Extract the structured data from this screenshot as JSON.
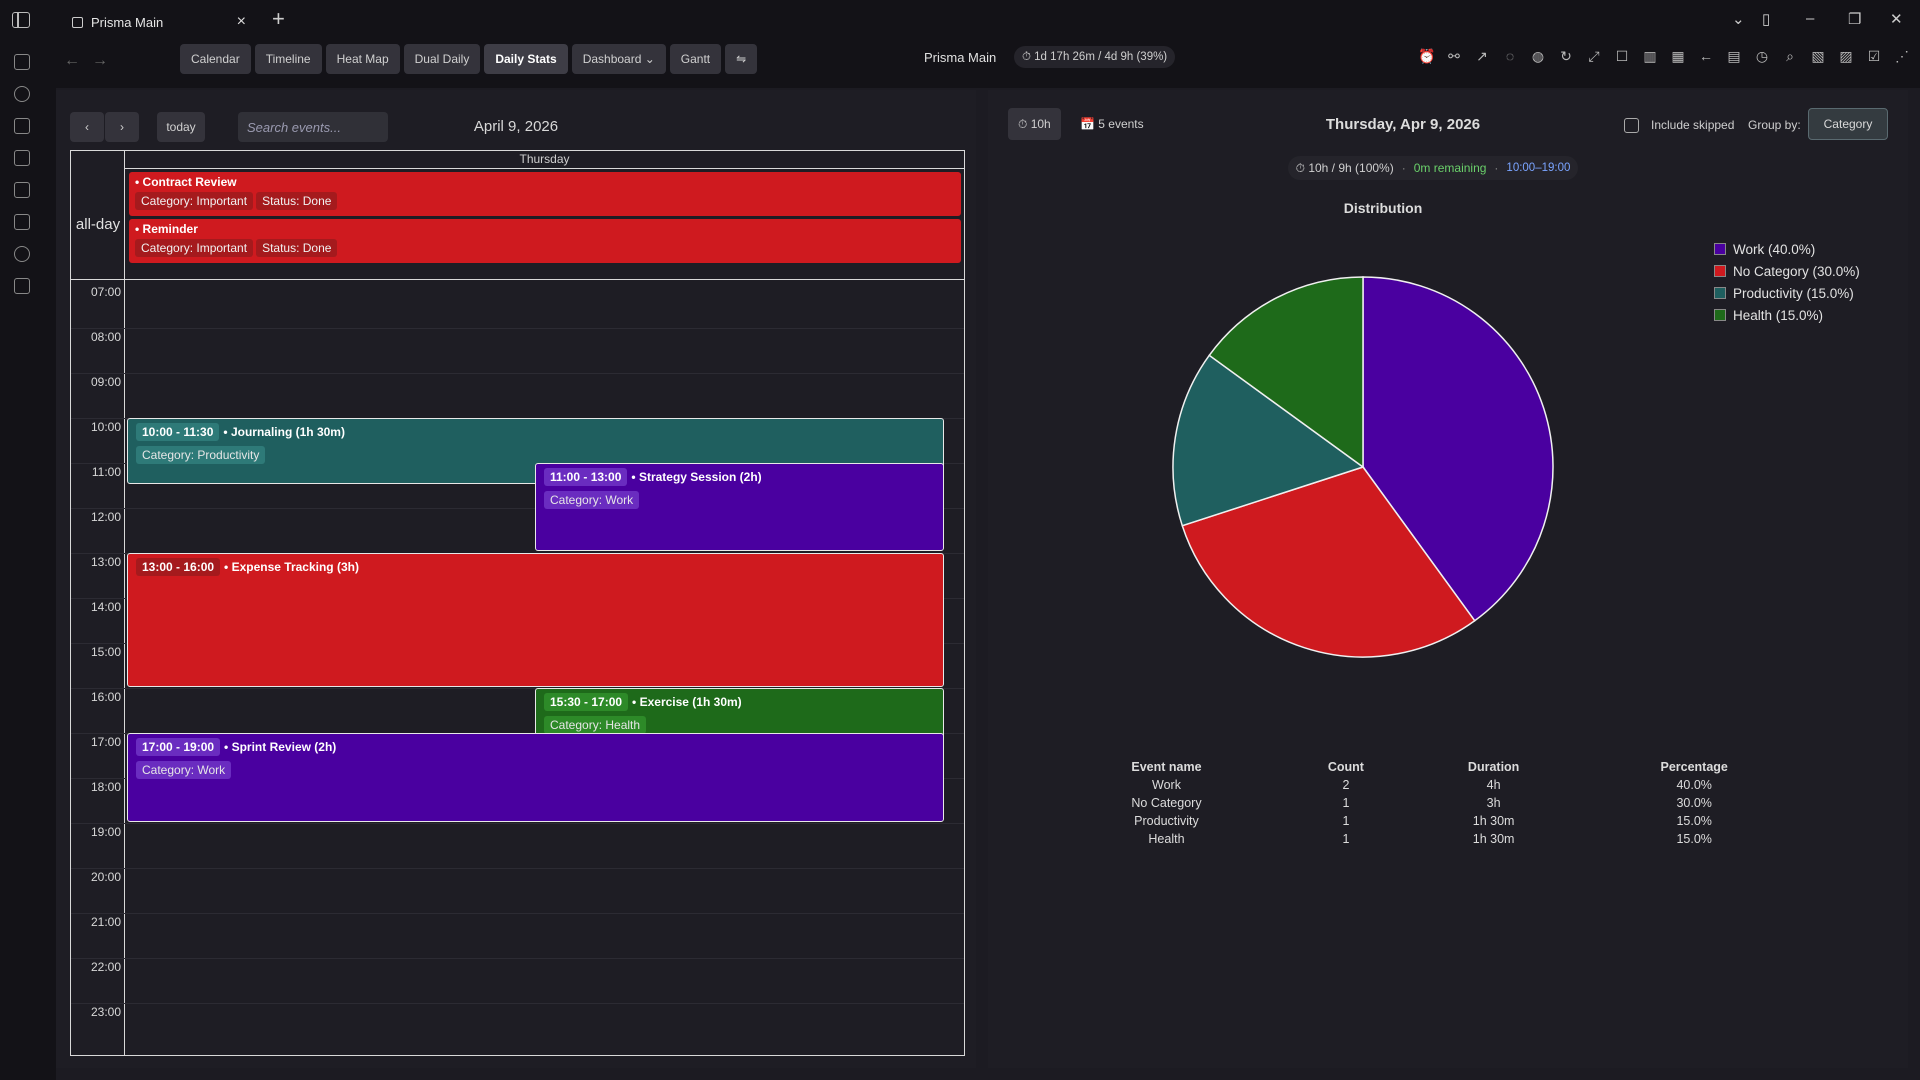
{
  "window": {
    "tab_title": "Prisma Main",
    "tab_close": "×",
    "tab_add": "+"
  },
  "toolbar": {
    "views": [
      "Calendar",
      "Timeline",
      "Heat Map",
      "Dual Daily",
      "Daily Stats",
      "Dashboard ⌄",
      "Gantt",
      "⇋"
    ],
    "active_view": "Daily Stats",
    "vault_name": "Prisma Main",
    "timer": "⏱ 1d 17h 26m / 4d 9h (39%)"
  },
  "calendar": {
    "prev_label": "‹",
    "next_label": "›",
    "today_label": "today",
    "search_placeholder": "Search events...",
    "title": "April 9, 2026",
    "day_header": "Thursday",
    "allday_label": "all-day",
    "hours": [
      "07:00",
      "08:00",
      "09:00",
      "10:00",
      "11:00",
      "12:00",
      "13:00",
      "14:00",
      "15:00",
      "16:00",
      "17:00",
      "18:00",
      "19:00",
      "20:00",
      "21:00",
      "22:00",
      "23:00"
    ],
    "allday_events": [
      {
        "title": "Contract Review",
        "category": "Category: Important",
        "status": "Status: Done"
      },
      {
        "title": "Reminder",
        "category": "Category: Important",
        "status": "Status: Done"
      }
    ],
    "events": [
      {
        "time": "10:00 - 11:30",
        "name": "Journaling (1h 30m)",
        "category": "Category: Productivity",
        "color": "#1f5f5f"
      },
      {
        "time": "11:00 - 13:00",
        "name": "Strategy Session (2h)",
        "category": "Category: Work",
        "color": "#4a00a0"
      },
      {
        "time": "13:00 - 16:00",
        "name": "Expense Tracking (3h)",
        "category": "",
        "color": "#cf1a1f"
      },
      {
        "time": "15:30 - 17:00",
        "name": "Exercise (1h 30m)",
        "category": "Category: Health",
        "color": "#1e6a1a"
      },
      {
        "time": "17:00 - 19:00",
        "name": "Sprint Review (2h)",
        "category": "Category: Work",
        "color": "#4a00a0"
      }
    ]
  },
  "stats": {
    "hours_button": "⏱ 10h",
    "events_count": "📅 5 events",
    "date": "Thursday, Apr 9, 2026",
    "include_skipped": "Include skipped",
    "group_by_label": "Group by:",
    "group_by_value": "Category",
    "summary_total": "⏱ 10h / 9h (100%)",
    "summary_sep": "·",
    "summary_remaining": "0m remaining",
    "summary_range": "10:00–19:00",
    "table_headers": [
      "Event name",
      "Count",
      "Duration",
      "Percentage"
    ],
    "table_rows": [
      [
        "Work",
        "2",
        "4h",
        "40.0%"
      ],
      [
        "No Category",
        "1",
        "3h",
        "30.0%"
      ],
      [
        "Productivity",
        "1",
        "1h 30m",
        "15.0%"
      ],
      [
        "Health",
        "1",
        "1h 30m",
        "15.0%"
      ]
    ]
  },
  "chart_data": {
    "type": "pie",
    "title": "Distribution",
    "categories": [
      "Work",
      "No Category",
      "Productivity",
      "Health"
    ],
    "values": [
      40.0,
      30.0,
      15.0,
      15.0
    ],
    "legend": [
      "Work (40.0%)",
      "No Category (30.0%)",
      "Productivity (15.0%)",
      "Health (15.0%)"
    ],
    "colors": [
      "#4a00a0",
      "#cf1a1f",
      "#1f5f5f",
      "#1e6a1a"
    ],
    "legend_position": "top-right"
  }
}
